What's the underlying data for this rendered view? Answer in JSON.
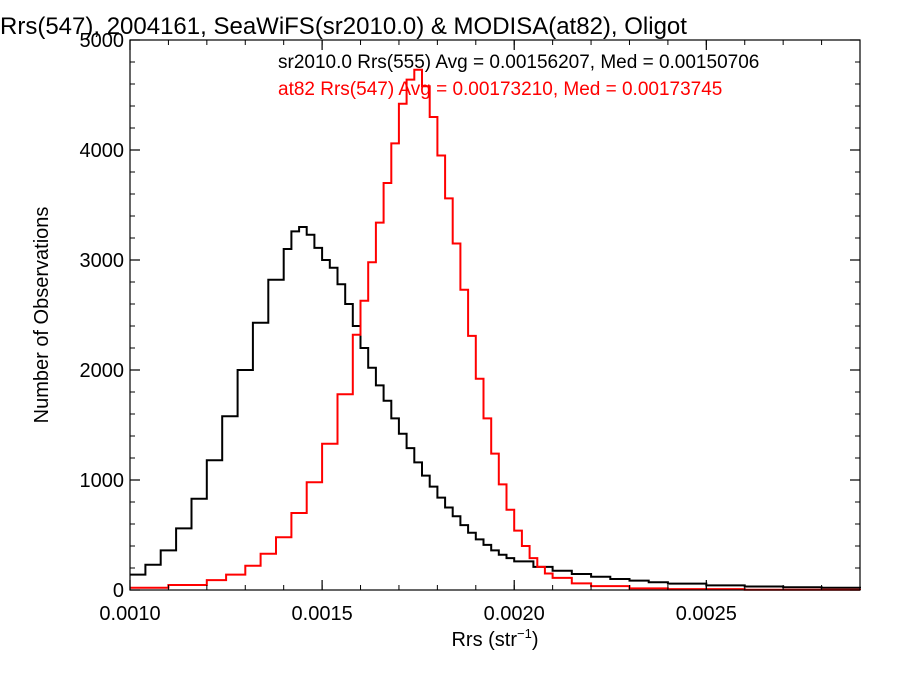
{
  "chart_data": {
    "type": "line",
    "title": "Rrs(547), 2004161, SeaWiFS(sr2010.0) & MODISA(at82), Oligot",
    "xlabel_main": "Rrs (str",
    "xlabel_sup": "−1",
    "xlabel_end": ")",
    "ylabel": "Number of Observations",
    "xlim": [
      0.001,
      0.0029
    ],
    "ylim": [
      0,
      5000
    ],
    "x_ticks": [
      0.001,
      0.0015,
      0.002,
      0.0025
    ],
    "x_tick_labels": [
      "0.0010",
      "0.0015",
      "0.0020",
      "0.0025"
    ],
    "y_ticks": [
      0,
      1000,
      2000,
      3000,
      4000,
      5000
    ],
    "y_tick_labels": [
      "0",
      "1000",
      "2000",
      "3000",
      "4000",
      "5000"
    ],
    "grid": false,
    "legend_position": "top-right",
    "series": [
      {
        "name": "sr2010.0 Rrs(555) Avg = 0.00156207, Med = 0.00150706",
        "color": "#000000",
        "points": [
          [
            0.001,
            140
          ],
          [
            0.00104,
            230
          ],
          [
            0.00108,
            360
          ],
          [
            0.00112,
            560
          ],
          [
            0.00116,
            830
          ],
          [
            0.0012,
            1180
          ],
          [
            0.00124,
            1580
          ],
          [
            0.00128,
            2000
          ],
          [
            0.00132,
            2430
          ],
          [
            0.00136,
            2820
          ],
          [
            0.0014,
            3100
          ],
          [
            0.00142,
            3260
          ],
          [
            0.00144,
            3300
          ],
          [
            0.00146,
            3230
          ],
          [
            0.00148,
            3110
          ],
          [
            0.0015,
            3000
          ],
          [
            0.00152,
            2930
          ],
          [
            0.00154,
            2780
          ],
          [
            0.00156,
            2600
          ],
          [
            0.00158,
            2400
          ],
          [
            0.0016,
            2200
          ],
          [
            0.00162,
            2020
          ],
          [
            0.00164,
            1860
          ],
          [
            0.00166,
            1720
          ],
          [
            0.00168,
            1560
          ],
          [
            0.0017,
            1420
          ],
          [
            0.00172,
            1290
          ],
          [
            0.00174,
            1160
          ],
          [
            0.00176,
            1040
          ],
          [
            0.00178,
            940
          ],
          [
            0.0018,
            840
          ],
          [
            0.00182,
            750
          ],
          [
            0.00184,
            670
          ],
          [
            0.00186,
            590
          ],
          [
            0.00188,
            520
          ],
          [
            0.0019,
            460
          ],
          [
            0.00192,
            410
          ],
          [
            0.00194,
            360
          ],
          [
            0.00196,
            320
          ],
          [
            0.00198,
            290
          ],
          [
            0.002,
            260
          ],
          [
            0.00205,
            210
          ],
          [
            0.0021,
            175
          ],
          [
            0.00215,
            145
          ],
          [
            0.0022,
            120
          ],
          [
            0.00225,
            100
          ],
          [
            0.0023,
            85
          ],
          [
            0.00235,
            70
          ],
          [
            0.0024,
            58
          ],
          [
            0.0025,
            42
          ],
          [
            0.0026,
            32
          ],
          [
            0.0027,
            25
          ],
          [
            0.0028,
            20
          ],
          [
            0.0029,
            16
          ]
        ]
      },
      {
        "name": "at82 Rrs(547) Avg = 0.00173210, Med = 0.00173745",
        "color": "#ff0000",
        "points": [
          [
            0.001,
            20
          ],
          [
            0.0011,
            45
          ],
          [
            0.0012,
            90
          ],
          [
            0.00125,
            140
          ],
          [
            0.0013,
            220
          ],
          [
            0.00134,
            330
          ],
          [
            0.00138,
            480
          ],
          [
            0.00142,
            700
          ],
          [
            0.00146,
            980
          ],
          [
            0.0015,
            1330
          ],
          [
            0.00154,
            1780
          ],
          [
            0.00158,
            2320
          ],
          [
            0.0016,
            2630
          ],
          [
            0.00162,
            2980
          ],
          [
            0.00164,
            3340
          ],
          [
            0.00166,
            3700
          ],
          [
            0.00168,
            4060
          ],
          [
            0.0017,
            4420
          ],
          [
            0.00172,
            4640
          ],
          [
            0.00174,
            4730
          ],
          [
            0.00176,
            4580
          ],
          [
            0.00178,
            4300
          ],
          [
            0.0018,
            3950
          ],
          [
            0.00182,
            3560
          ],
          [
            0.00184,
            3150
          ],
          [
            0.00186,
            2730
          ],
          [
            0.00188,
            2310
          ],
          [
            0.0019,
            1920
          ],
          [
            0.00192,
            1560
          ],
          [
            0.00194,
            1240
          ],
          [
            0.00196,
            960
          ],
          [
            0.00198,
            730
          ],
          [
            0.002,
            540
          ],
          [
            0.00202,
            400
          ],
          [
            0.00204,
            290
          ],
          [
            0.00206,
            210
          ],
          [
            0.00208,
            150
          ],
          [
            0.0021,
            110
          ],
          [
            0.00215,
            60
          ],
          [
            0.0022,
            35
          ],
          [
            0.0023,
            15
          ],
          [
            0.0024,
            8
          ],
          [
            0.0026,
            3
          ],
          [
            0.0029,
            0
          ]
        ]
      }
    ]
  }
}
